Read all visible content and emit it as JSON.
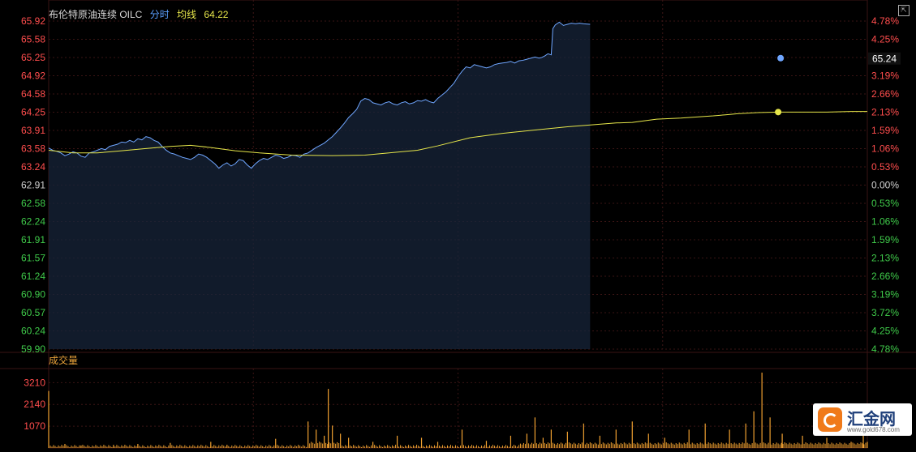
{
  "header": {
    "name": "布伦特原油连续 OILC",
    "tab": "分时",
    "avg_label": "均线",
    "avg_value": "64.22"
  },
  "volume_title": "成交量",
  "current_price_tag": "65.24",
  "logo": {
    "text": "汇金网",
    "url": "www.gold678.com"
  },
  "colors": {
    "price_line": "#6fa6ff",
    "avg_line": "#e6e64a",
    "up": "#ff4d4d",
    "down": "#3fca4a",
    "volume": "#f0a030",
    "grid": "#3a1414",
    "axis_text": "#d0d0d0"
  },
  "chart_data": {
    "type": "line",
    "title": "",
    "base_price": 62.91,
    "price_ylim": [
      59.9,
      65.92
    ],
    "price_ticks": [
      "65.92",
      "65.58",
      "65.25",
      "64.92",
      "64.58",
      "64.25",
      "63.91",
      "63.58",
      "63.24",
      "62.91",
      "62.58",
      "62.24",
      "61.91",
      "61.57",
      "61.24",
      "60.90",
      "60.57",
      "60.24",
      "59.90"
    ],
    "pct_ticks": [
      "4.78%",
      "4.25%",
      "3.72%",
      "3.19%",
      "2.66%",
      "2.13%",
      "1.59%",
      "1.06%",
      "0.53%",
      "0.00%",
      "0.53%",
      "1.06%",
      "1.59%",
      "2.13%",
      "2.66%",
      "3.19%",
      "3.72%",
      "4.25%",
      "4.78%"
    ],
    "price_series": [
      [
        0,
        63.59
      ],
      [
        5,
        63.55
      ],
      [
        10,
        63.53
      ],
      [
        15,
        63.5
      ],
      [
        20,
        63.45
      ],
      [
        25,
        63.48
      ],
      [
        30,
        63.52
      ],
      [
        35,
        63.5
      ],
      [
        40,
        63.44
      ],
      [
        45,
        63.42
      ],
      [
        50,
        63.5
      ],
      [
        55,
        63.52
      ],
      [
        60,
        63.55
      ],
      [
        65,
        63.58
      ],
      [
        70,
        63.56
      ],
      [
        75,
        63.62
      ],
      [
        80,
        63.64
      ],
      [
        85,
        63.66
      ],
      [
        90,
        63.7
      ],
      [
        95,
        63.69
      ],
      [
        100,
        63.73
      ],
      [
        105,
        63.7
      ],
      [
        110,
        63.76
      ],
      [
        115,
        63.74
      ],
      [
        120,
        63.8
      ],
      [
        125,
        63.78
      ],
      [
        130,
        63.73
      ],
      [
        135,
        63.7
      ],
      [
        140,
        63.62
      ],
      [
        145,
        63.55
      ],
      [
        150,
        63.5
      ],
      [
        155,
        63.48
      ],
      [
        160,
        63.45
      ],
      [
        165,
        63.42
      ],
      [
        170,
        63.4
      ],
      [
        175,
        63.38
      ],
      [
        180,
        63.42
      ],
      [
        185,
        63.48
      ],
      [
        190,
        63.46
      ],
      [
        195,
        63.42
      ],
      [
        200,
        63.36
      ],
      [
        205,
        63.3
      ],
      [
        210,
        63.22
      ],
      [
        215,
        63.28
      ],
      [
        220,
        63.32
      ],
      [
        225,
        63.26
      ],
      [
        230,
        63.3
      ],
      [
        235,
        63.38
      ],
      [
        240,
        63.36
      ],
      [
        245,
        63.28
      ],
      [
        250,
        63.22
      ],
      [
        255,
        63.3
      ],
      [
        260,
        63.36
      ],
      [
        265,
        63.4
      ],
      [
        270,
        63.38
      ],
      [
        275,
        63.42
      ],
      [
        280,
        63.46
      ],
      [
        285,
        63.44
      ],
      [
        290,
        63.4
      ],
      [
        295,
        63.42
      ],
      [
        300,
        63.46
      ],
      [
        305,
        63.45
      ],
      [
        310,
        63.42
      ],
      [
        315,
        63.48
      ],
      [
        320,
        63.5
      ],
      [
        325,
        63.55
      ],
      [
        330,
        63.6
      ],
      [
        335,
        63.64
      ],
      [
        340,
        63.68
      ],
      [
        345,
        63.74
      ],
      [
        350,
        63.8
      ],
      [
        355,
        63.88
      ],
      [
        360,
        63.96
      ],
      [
        365,
        64.05
      ],
      [
        370,
        64.15
      ],
      [
        375,
        64.22
      ],
      [
        380,
        64.3
      ],
      [
        385,
        64.45
      ],
      [
        390,
        64.5
      ],
      [
        395,
        64.48
      ],
      [
        400,
        64.42
      ],
      [
        405,
        64.4
      ],
      [
        410,
        64.38
      ],
      [
        415,
        64.42
      ],
      [
        420,
        64.44
      ],
      [
        425,
        64.4
      ],
      [
        430,
        64.38
      ],
      [
        435,
        64.42
      ],
      [
        440,
        64.44
      ],
      [
        445,
        64.4
      ],
      [
        450,
        64.42
      ],
      [
        455,
        64.46
      ],
      [
        460,
        64.45
      ],
      [
        465,
        64.48
      ],
      [
        470,
        64.44
      ],
      [
        475,
        64.42
      ],
      [
        480,
        64.5
      ],
      [
        485,
        64.56
      ],
      [
        490,
        64.62
      ],
      [
        495,
        64.7
      ],
      [
        500,
        64.78
      ],
      [
        505,
        64.9
      ],
      [
        510,
        65.0
      ],
      [
        515,
        65.08
      ],
      [
        520,
        65.06
      ],
      [
        525,
        65.12
      ],
      [
        530,
        65.1
      ],
      [
        535,
        65.08
      ],
      [
        540,
        65.06
      ],
      [
        545,
        65.08
      ],
      [
        550,
        65.12
      ],
      [
        555,
        65.14
      ],
      [
        560,
        65.15
      ],
      [
        565,
        65.16
      ],
      [
        570,
        65.18
      ],
      [
        575,
        65.15
      ],
      [
        580,
        65.19
      ],
      [
        585,
        65.2
      ],
      [
        590,
        65.22
      ],
      [
        595,
        65.24
      ],
      [
        600,
        65.26
      ],
      [
        605,
        65.24
      ],
      [
        608,
        65.25
      ],
      [
        612,
        65.28
      ],
      [
        616,
        65.32
      ],
      [
        620,
        65.3
      ],
      [
        622,
        65.78
      ],
      [
        625,
        65.85
      ],
      [
        630,
        65.9
      ],
      [
        635,
        65.84
      ],
      [
        640,
        65.86
      ],
      [
        645,
        65.88
      ],
      [
        650,
        65.87
      ],
      [
        655,
        65.88
      ],
      [
        660,
        65.87
      ],
      [
        668,
        65.86
      ]
    ],
    "avg_series": [
      [
        0,
        63.55
      ],
      [
        30,
        63.5
      ],
      [
        60,
        63.5
      ],
      [
        90,
        63.54
      ],
      [
        120,
        63.58
      ],
      [
        150,
        63.62
      ],
      [
        175,
        63.64
      ],
      [
        200,
        63.6
      ],
      [
        230,
        63.54
      ],
      [
        260,
        63.5
      ],
      [
        300,
        63.46
      ],
      [
        350,
        63.45
      ],
      [
        390,
        63.46
      ],
      [
        420,
        63.5
      ],
      [
        455,
        63.55
      ],
      [
        480,
        63.63
      ],
      [
        520,
        63.78
      ],
      [
        560,
        63.86
      ],
      [
        600,
        63.92
      ],
      [
        640,
        63.98
      ],
      [
        700,
        64.05
      ],
      [
        720,
        64.06
      ],
      [
        735,
        64.09
      ],
      [
        750,
        64.12
      ],
      [
        780,
        64.14
      ],
      [
        800,
        64.16
      ],
      [
        820,
        64.18
      ],
      [
        835,
        64.2
      ],
      [
        850,
        64.22
      ],
      [
        875,
        64.24
      ],
      [
        900,
        64.25
      ],
      [
        930,
        64.25
      ],
      [
        960,
        64.25
      ],
      [
        990,
        64.26
      ],
      [
        1010,
        64.26
      ]
    ],
    "x_max": 1010,
    "volume_ylim": [
      0,
      3900
    ],
    "volume_ticks": [
      3210,
      2140,
      1070
    ],
    "volume_spikes": [
      [
        0,
        2800
      ],
      [
        20,
        200
      ],
      [
        40,
        120
      ],
      [
        80,
        150
      ],
      [
        110,
        200
      ],
      [
        150,
        250
      ],
      [
        200,
        300
      ],
      [
        220,
        150
      ],
      [
        280,
        450
      ],
      [
        320,
        1300
      ],
      [
        330,
        900
      ],
      [
        340,
        600
      ],
      [
        345,
        2900
      ],
      [
        350,
        1100
      ],
      [
        360,
        700
      ],
      [
        370,
        500
      ],
      [
        400,
        300
      ],
      [
        430,
        600
      ],
      [
        460,
        500
      ],
      [
        480,
        300
      ],
      [
        510,
        900
      ],
      [
        540,
        350
      ],
      [
        570,
        600
      ],
      [
        590,
        700
      ],
      [
        600,
        1500
      ],
      [
        610,
        500
      ],
      [
        620,
        900
      ],
      [
        640,
        800
      ],
      [
        660,
        1200
      ],
      [
        680,
        600
      ],
      [
        700,
        900
      ],
      [
        720,
        1300
      ],
      [
        740,
        700
      ],
      [
        760,
        500
      ],
      [
        790,
        900
      ],
      [
        810,
        1200
      ],
      [
        840,
        900
      ],
      [
        860,
        1200
      ],
      [
        870,
        1800
      ],
      [
        880,
        3700
      ],
      [
        890,
        1500
      ],
      [
        905,
        700
      ],
      [
        930,
        600
      ],
      [
        960,
        500
      ],
      [
        990,
        300
      ],
      [
        1005,
        2000
      ],
      [
        1010,
        300
      ]
    ]
  }
}
